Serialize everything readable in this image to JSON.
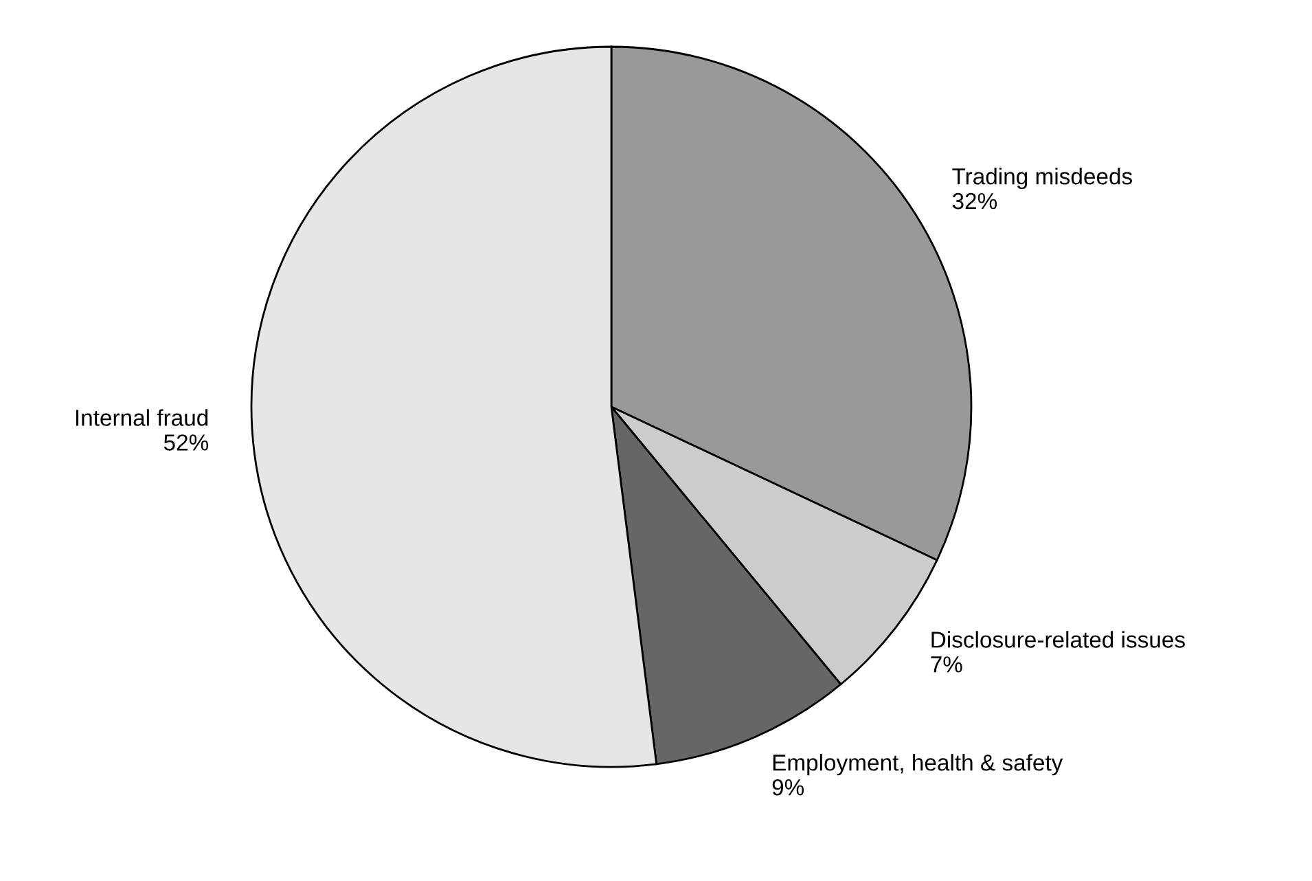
{
  "chart_data": {
    "type": "pie",
    "categories": [
      "Trading misdeeds",
      "Disclosure-related issues",
      "Employment, health & safety",
      "Internal fraud"
    ],
    "values": [
      32,
      7,
      9,
      52
    ],
    "value_labels": [
      "32%",
      "7%",
      "9%",
      "52%"
    ],
    "colors": [
      "#999999",
      "#cccccc",
      "#666666",
      "#e6e6e6"
    ]
  }
}
